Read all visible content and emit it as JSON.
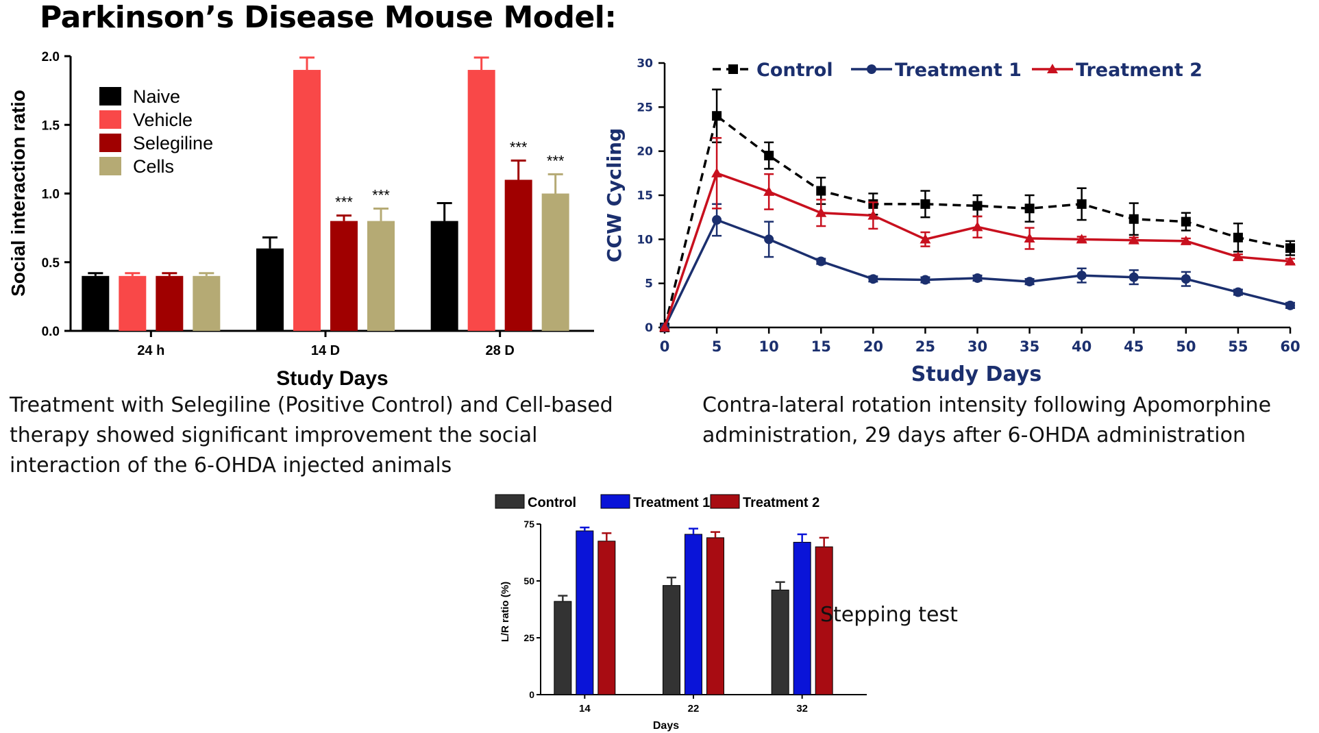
{
  "page": {
    "title": "Parkinson’s Disease Mouse Model:",
    "captions": {
      "social": "Treatment with Selegiline (Positive Control) and Cell-based therapy showed significant improvement the social interaction of the 6-OHDA injected animals",
      "rotation": "Contra-lateral rotation intensity following Apomorphine administration,  29 days after 6-OHDA administration",
      "stepping": "Stepping test"
    }
  },
  "chart_data": [
    {
      "type": "bar",
      "title": "",
      "xlabel": "Study Days",
      "ylabel": "Social interaction ratio",
      "categories": [
        "24 h",
        "14 D",
        "28 D"
      ],
      "ylim": [
        0,
        2.0
      ],
      "yticks": [
        "0.0",
        "0.5",
        "1.0",
        "1.5",
        "2.0"
      ],
      "legend_position": "top-left",
      "series": [
        {
          "name": "Naive",
          "color": "#000000",
          "values": [
            0.4,
            0.6,
            0.8
          ],
          "errors": [
            0.02,
            0.08,
            0.13
          ],
          "annotations": [
            "",
            "",
            ""
          ]
        },
        {
          "name": "Vehicle",
          "color": "#f94848",
          "values": [
            0.4,
            1.9,
            1.9
          ],
          "errors": [
            0.02,
            0.09,
            0.09
          ],
          "annotations": [
            "",
            "",
            ""
          ]
        },
        {
          "name": "Selegiline",
          "color": "#a00000",
          "values": [
            0.4,
            0.8,
            1.1
          ],
          "errors": [
            0.02,
            0.04,
            0.14
          ],
          "annotations": [
            "",
            "***",
            "***"
          ]
        },
        {
          "name": "Cells",
          "color": "#b5aa74",
          "values": [
            0.4,
            0.8,
            1.0
          ],
          "errors": [
            0.02,
            0.09,
            0.14
          ],
          "annotations": [
            "",
            "***",
            "***"
          ]
        }
      ]
    },
    {
      "type": "line",
      "title": "",
      "xlabel": "Study Days",
      "ylabel": "CCW Cycling",
      "x": [
        0,
        5,
        10,
        15,
        20,
        25,
        30,
        35,
        40,
        45,
        50,
        55,
        60
      ],
      "xlim": [
        0,
        60
      ],
      "ylim": [
        0,
        30
      ],
      "xticks": [
        "0",
        "5",
        "10",
        "15",
        "20",
        "25",
        "30",
        "35",
        "40",
        "45",
        "50",
        "55",
        "60"
      ],
      "yticks": [
        "0",
        "5",
        "10",
        "15",
        "20",
        "25",
        "30"
      ],
      "legend_position": "top",
      "series": [
        {
          "name": "Control",
          "color": "#000000",
          "marker": "square",
          "dash": true,
          "values": [
            0,
            24,
            19.5,
            15.5,
            14,
            14,
            13.8,
            13.5,
            14,
            12.3,
            12,
            10.2,
            9
          ],
          "errors": [
            0,
            3,
            1.5,
            1.5,
            1.2,
            1.5,
            1.2,
            1.5,
            1.8,
            1.8,
            1,
            1.6,
            0.8
          ]
        },
        {
          "name": "Treatment 1",
          "color": "#1b2f6e",
          "marker": "circle",
          "dash": false,
          "values": [
            0,
            12.2,
            10,
            7.5,
            5.5,
            5.4,
            5.6,
            5.2,
            5.9,
            5.7,
            5.5,
            4,
            2.5
          ],
          "errors": [
            0,
            1.8,
            2,
            0.3,
            0.3,
            0.3,
            0.3,
            0.3,
            0.8,
            0.8,
            0.8,
            0.3,
            0.3
          ]
        },
        {
          "name": "Treatment 2",
          "color": "#c8101e",
          "marker": "triangle",
          "dash": false,
          "values": [
            0,
            17.5,
            15.4,
            13,
            12.7,
            10,
            11.4,
            10.1,
            10,
            9.9,
            9.8,
            8,
            7.5
          ],
          "errors": [
            0,
            4,
            2,
            1.5,
            1.5,
            0.8,
            1.2,
            1.2,
            0.3,
            0.3,
            0.3,
            0.3,
            0.3
          ]
        }
      ]
    },
    {
      "type": "bar",
      "title": "",
      "xlabel": "Days",
      "ylabel": "L/R ratio (%)",
      "categories": [
        "14",
        "22",
        "32"
      ],
      "ylim": [
        0,
        75
      ],
      "yticks": [
        "0",
        "25",
        "50",
        "75"
      ],
      "legend_position": "top",
      "series": [
        {
          "name": "Control",
          "color": "#333333",
          "values": [
            41,
            48,
            46
          ],
          "errors": [
            2.5,
            3.5,
            3.5
          ]
        },
        {
          "name": "Treatment 1",
          "color": "#0a14d8",
          "values": [
            72,
            70.5,
            67
          ],
          "errors": [
            1.5,
            2.5,
            3.5
          ]
        },
        {
          "name": "Treatment 2",
          "color": "#a80c12",
          "values": [
            67.5,
            69,
            65
          ],
          "errors": [
            3.5,
            2.5,
            4
          ]
        }
      ]
    }
  ]
}
